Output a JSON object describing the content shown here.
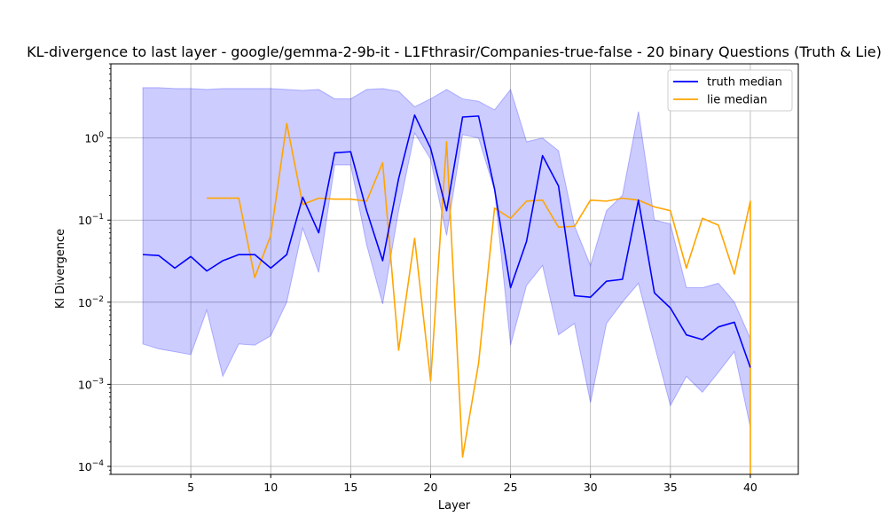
{
  "chart_data": {
    "type": "line",
    "title": "KL-divergence to last layer - google/gemma-2-9b-it - L1Fthrasir/Companies-true-false - 20 binary Questions (Truth & Lie)",
    "xlabel": "Layer",
    "ylabel": "Kl Divergence",
    "xlim": [
      0,
      43
    ],
    "ylim": [
      8e-05,
      8
    ],
    "yscale": "log",
    "grid": true,
    "legend_position": "top-right",
    "x_ticks": [
      5,
      10,
      15,
      20,
      25,
      30,
      35,
      40
    ],
    "y_ticks": [
      {
        "value": 0.0001,
        "base": "10",
        "exp": "−4"
      },
      {
        "value": 0.001,
        "base": "10",
        "exp": "−3"
      },
      {
        "value": 0.01,
        "base": "10",
        "exp": "−2"
      },
      {
        "value": 0.1,
        "base": "10",
        "exp": "−1"
      },
      {
        "value": 1,
        "base": "10",
        "exp": "0"
      }
    ],
    "series": [
      {
        "name": "truth median",
        "color": "#0000ff",
        "x": [
          2,
          3,
          4,
          5,
          6,
          7,
          8,
          9,
          10,
          11,
          12,
          13,
          14,
          15,
          16,
          17,
          18,
          19,
          20,
          21,
          22,
          23,
          24,
          25,
          26,
          27,
          28,
          29,
          30,
          31,
          32,
          33,
          34,
          35,
          36,
          37,
          38,
          39,
          40
        ],
        "values": [
          0.038,
          0.037,
          0.026,
          0.036,
          0.024,
          0.032,
          0.038,
          0.038,
          0.026,
          0.038,
          0.19,
          0.07,
          0.66,
          0.68,
          0.13,
          0.032,
          0.32,
          1.9,
          0.75,
          0.13,
          1.8,
          1.85,
          0.24,
          0.015,
          0.055,
          0.61,
          0.26,
          0.012,
          0.0115,
          0.018,
          0.019,
          0.175,
          0.013,
          0.0085,
          0.004,
          0.0035,
          0.005,
          0.0057,
          0.0016
        ]
      },
      {
        "name": "lie median",
        "color": "#ffa500",
        "x": [
          6,
          7,
          8,
          9,
          10,
          11,
          12,
          13,
          14,
          15,
          16,
          17,
          18,
          19,
          20,
          21,
          22,
          23,
          24,
          25,
          26,
          27,
          28,
          29,
          30,
          31,
          32,
          33,
          34,
          35,
          36,
          37,
          38,
          39,
          40,
          40
        ],
        "values": [
          0.185,
          0.185,
          0.185,
          0.02,
          0.065,
          1.5,
          0.155,
          0.185,
          0.18,
          0.18,
          0.17,
          0.5,
          0.0026,
          0.06,
          0.0011,
          0.9,
          0.00013,
          0.0018,
          0.14,
          0.105,
          0.17,
          0.175,
          0.082,
          0.084,
          0.175,
          0.17,
          0.185,
          0.175,
          0.145,
          0.13,
          0.026,
          0.105,
          0.087,
          0.022,
          0.17,
          8e-05
        ]
      }
    ],
    "band": {
      "color": "#0000ff",
      "x": [
        2,
        3,
        4,
        5,
        6,
        7,
        8,
        9,
        10,
        11,
        12,
        13,
        14,
        15,
        16,
        17,
        18,
        19,
        20,
        21,
        22,
        23,
        24,
        25,
        26,
        27,
        28,
        29,
        30,
        31,
        32,
        33,
        34,
        35,
        36,
        37,
        38,
        39,
        40
      ],
      "upper": [
        4.1,
        4.1,
        4.0,
        4.0,
        3.9,
        4.0,
        4.0,
        4.0,
        4.0,
        3.9,
        3.8,
        3.9,
        3.0,
        3.0,
        3.9,
        4.0,
        3.7,
        2.4,
        3.0,
        3.9,
        3.0,
        2.8,
        2.2,
        3.9,
        0.9,
        1.0,
        0.7,
        0.085,
        0.028,
        0.13,
        0.2,
        2.1,
        0.1,
        0.09,
        0.015,
        0.015,
        0.017,
        0.01,
        0.0036
      ],
      "lower": [
        0.0031,
        0.0027,
        0.0025,
        0.0023,
        0.008,
        0.00125,
        0.0031,
        0.003,
        0.0039,
        0.01,
        0.08,
        0.023,
        0.47,
        0.47,
        0.05,
        0.0095,
        0.13,
        1.15,
        0.55,
        0.065,
        1.1,
        1.0,
        0.23,
        0.003,
        0.016,
        0.028,
        0.004,
        0.0055,
        0.0006,
        0.0055,
        0.01,
        0.017,
        0.003,
        0.00055,
        0.00125,
        0.0008,
        0.0014,
        0.0025,
        0.0003
      ]
    }
  }
}
